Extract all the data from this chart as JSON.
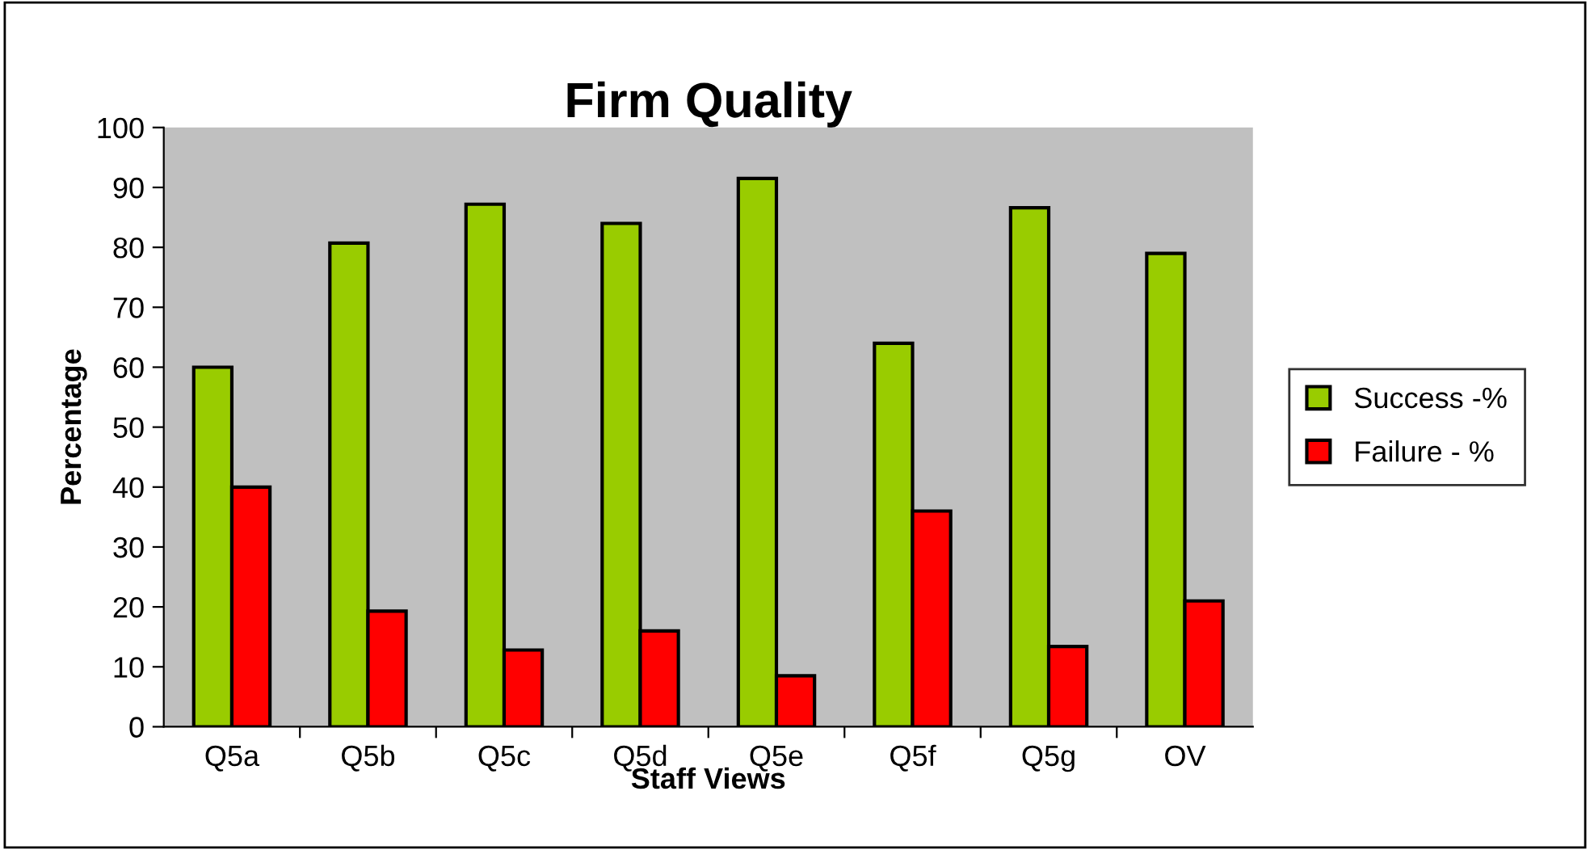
{
  "chart_data": {
    "type": "bar",
    "title": "Firm Quality",
    "xlabel": "Staff Views",
    "ylabel": "Percentage",
    "categories": [
      "Q5a",
      "Q5b",
      "Q5c",
      "Q5d",
      "Q5e",
      "Q5f",
      "Q5g",
      "OV"
    ],
    "series": [
      {
        "name": "Success -%",
        "color": "#99cc00",
        "values": [
          60,
          80.7,
          87.2,
          84,
          91.5,
          64,
          86.6,
          79
        ]
      },
      {
        "name": "Failure - %",
        "color": "#ff0000",
        "values": [
          40,
          19.3,
          12.8,
          16,
          8.5,
          36,
          13.4,
          21
        ]
      }
    ],
    "ylim": [
      0,
      100
    ],
    "yticks": [
      0,
      10,
      20,
      30,
      40,
      50,
      60,
      70,
      80,
      90,
      100
    ],
    "grid": false,
    "legend": "right"
  }
}
